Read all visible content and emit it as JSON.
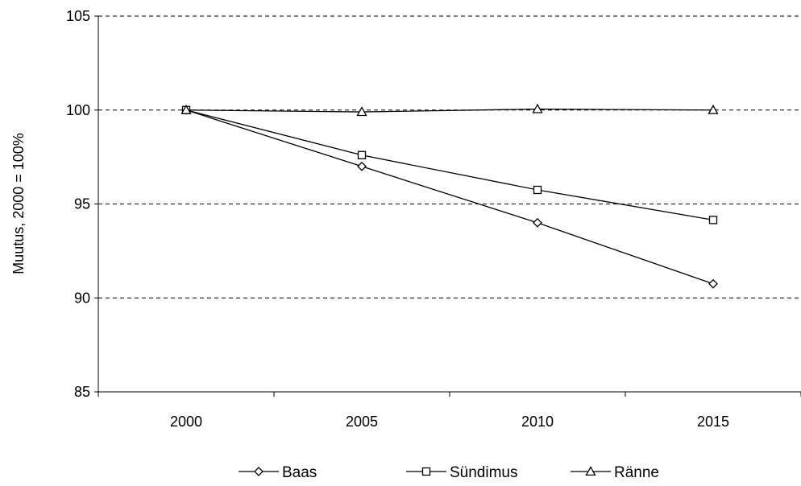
{
  "chart_data": {
    "type": "line",
    "title": "",
    "xlabel": "",
    "ylabel": "Muutus, 2000 = 100%",
    "categories": [
      "2000",
      "2005",
      "2010",
      "2015"
    ],
    "ylim": [
      85,
      105
    ],
    "yticks": [
      "85",
      "90",
      "95",
      "100",
      "105"
    ],
    "grid": "horizontal-dashed",
    "legend_position": "bottom",
    "series": [
      {
        "name": "Baas",
        "marker": "diamond",
        "values": [
          100,
          97.0,
          94.0,
          90.75
        ]
      },
      {
        "name": "Sündimus",
        "marker": "square",
        "values": [
          100,
          97.6,
          95.75,
          94.15
        ]
      },
      {
        "name": "Ränne",
        "marker": "triangle",
        "values": [
          100,
          99.9,
          100.05,
          100.0
        ]
      }
    ]
  }
}
